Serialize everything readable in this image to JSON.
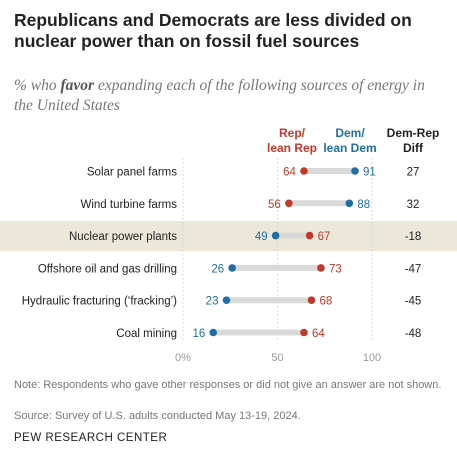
{
  "title": "Republicans and Democrats are less divided on nuclear power than on fossil fuel sources",
  "subtitle": {
    "prefix": "% who ",
    "emphasis": "favor",
    "suffix": " expanding each of the following sources of energy in the United States"
  },
  "colors": {
    "rep": "#c0392b",
    "dem": "#1f6fa6",
    "highlight_band": "#ebe8d9",
    "connector": "#d9d9d9"
  },
  "chart_data": {
    "type": "dot",
    "categories": [
      "Solar panel farms",
      "Wind turbine farms",
      "Nuclear power plants",
      "Offshore oil and gas drilling",
      "Hydraulic fracturing (‘fracking’)",
      "Coal mining"
    ],
    "series": [
      {
        "name": "Rep/ lean Rep",
        "values": [
          64,
          56,
          67,
          73,
          68,
          64
        ]
      },
      {
        "name": "Dem/ lean Dem",
        "values": [
          91,
          88,
          49,
          26,
          23,
          16
        ]
      }
    ],
    "diff": {
      "name": "Dem-Rep Diff",
      "values": [
        "27",
        "32",
        "-18",
        "-47",
        "-45",
        "-48"
      ]
    },
    "highlighted_category": "Nuclear power plants",
    "x_ticks": [
      "0%",
      "50",
      "100"
    ],
    "xlim": [
      0,
      100
    ]
  },
  "legend": {
    "rep_line1": "Rep/",
    "rep_line2": "lean Rep",
    "dem_line1": "Dem/",
    "dem_line2": "lean Dem",
    "diff_line1": "Dem-Rep",
    "diff_line2": "Diff"
  },
  "note": "Note: Respondents who gave other responses or did not give an answer are not shown.",
  "source": "Source: Survey of U.S. adults conducted May 13-19, 2024.",
  "org": "PEW RESEARCH CENTER"
}
